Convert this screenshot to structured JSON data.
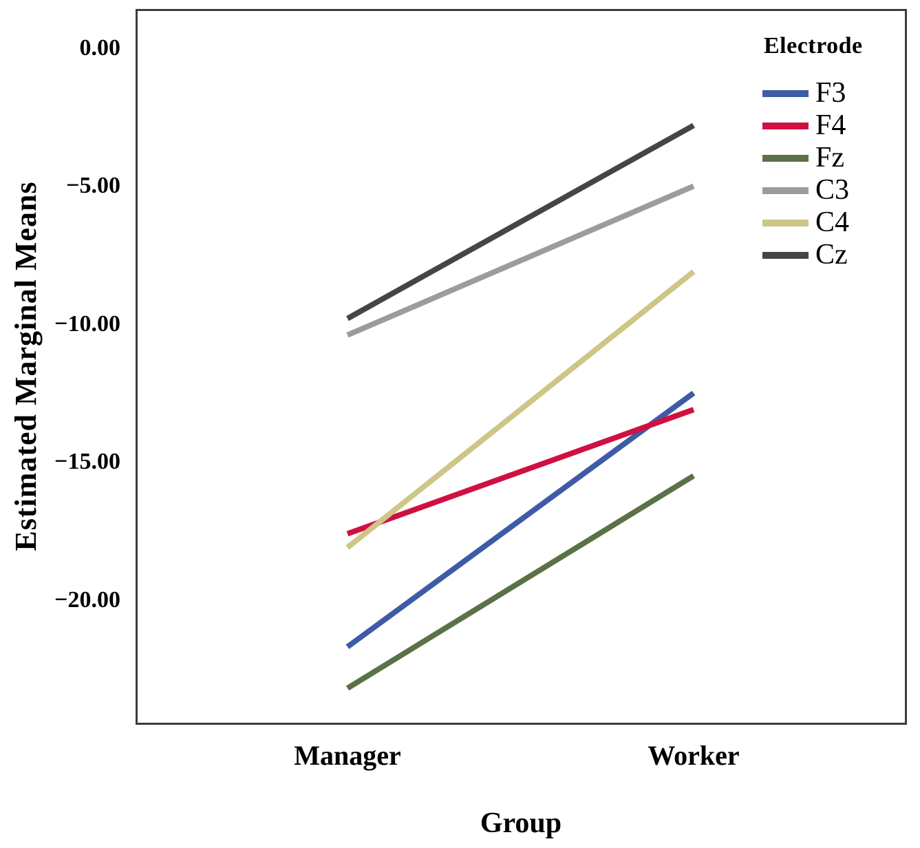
{
  "chart_data": {
    "type": "line",
    "title": "",
    "xlabel": "Group",
    "ylabel": "Estimated Marginal Means",
    "categories": [
      "Manager",
      "Worker"
    ],
    "legend_title": "Electrode",
    "legend_position": "inside-top-right",
    "grid": false,
    "ylim": [
      -24.5,
      1.4
    ],
    "yticks": [
      {
        "value": 0,
        "label": "0.00"
      },
      {
        "value": -5,
        "label": "−5.00"
      },
      {
        "value": -10,
        "label": "−10.00"
      },
      {
        "value": -15,
        "label": "−15.00"
      },
      {
        "value": -20,
        "label": "−20.00"
      }
    ],
    "series": [
      {
        "name": "F3",
        "color": "#3E5BA6",
        "values": [
          -21.7,
          -12.5
        ]
      },
      {
        "name": "F4",
        "color": "#CF1040",
        "values": [
          -17.6,
          -13.1
        ]
      },
      {
        "name": "Fz",
        "color": "#5B7146",
        "values": [
          -23.2,
          -15.5
        ]
      },
      {
        "name": "C3",
        "color": "#9C9C9C",
        "values": [
          -10.4,
          -5.0
        ]
      },
      {
        "name": "C4",
        "color": "#CEC687",
        "values": [
          -18.1,
          -8.1
        ]
      },
      {
        "name": "Cz",
        "color": "#454545",
        "values": [
          -9.8,
          -2.8
        ]
      }
    ],
    "colors": {
      "frame": "#3c3c3c",
      "background": "#ffffff"
    }
  }
}
